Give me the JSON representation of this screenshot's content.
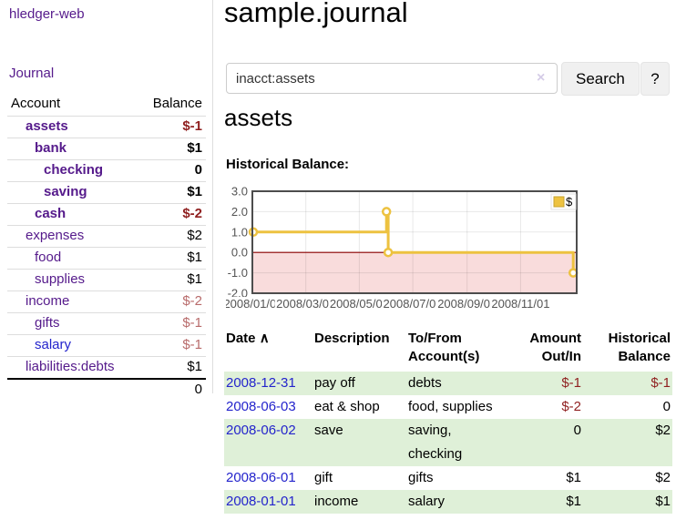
{
  "sidebar": {
    "brand": "hledger-web",
    "journal_link": "Journal",
    "accounts_table": {
      "account_header": "Account",
      "balance_header": "Balance",
      "rows": [
        {
          "name": "assets",
          "balance": "$-1",
          "depth": 1,
          "emphasized": true,
          "visited": true,
          "negative": "strong"
        },
        {
          "name": "bank",
          "balance": "$1",
          "depth": 2,
          "emphasized": true,
          "visited": true,
          "negative": "none"
        },
        {
          "name": "checking",
          "balance": "0",
          "depth": 3,
          "emphasized": true,
          "visited": true,
          "negative": "none"
        },
        {
          "name": "saving",
          "balance": "$1",
          "depth": 3,
          "emphasized": true,
          "visited": true,
          "negative": "none"
        },
        {
          "name": "cash",
          "balance": "$-2",
          "depth": 2,
          "emphasized": true,
          "visited": true,
          "negative": "strong"
        },
        {
          "name": "expenses",
          "balance": "$2",
          "depth": 1,
          "emphasized": false,
          "visited": true,
          "negative": "none"
        },
        {
          "name": "food",
          "balance": "$1",
          "depth": 2,
          "emphasized": false,
          "visited": true,
          "negative": "none"
        },
        {
          "name": "supplies",
          "balance": "$1",
          "depth": 2,
          "emphasized": false,
          "visited": true,
          "negative": "none"
        },
        {
          "name": "income",
          "balance": "$-2",
          "depth": 1,
          "emphasized": false,
          "visited": true,
          "negative": "soft"
        },
        {
          "name": "gifts",
          "balance": "$-1",
          "depth": 2,
          "emphasized": false,
          "visited": true,
          "negative": "soft"
        },
        {
          "name": "salary",
          "balance": "$-1",
          "depth": 2,
          "emphasized": false,
          "visited": false,
          "negative": "soft"
        },
        {
          "name": "liabilities:debts",
          "balance": "$1",
          "depth": 1,
          "emphasized": false,
          "visited": true,
          "negative": "none"
        }
      ],
      "total": "0"
    }
  },
  "header": {
    "title": "sample.journal"
  },
  "search": {
    "value": "inacct:assets",
    "button_label": "Search",
    "help_label": "?"
  },
  "icons": {
    "clear_search": "×",
    "sort_ascending": "∧"
  },
  "account_view": {
    "heading": "assets",
    "chart_label": "Historical Balance:"
  },
  "chart_data": {
    "type": "line",
    "step": true,
    "title": "Historical Balance:",
    "series": [
      {
        "name": "$",
        "color": "#edc240",
        "points": [
          {
            "x": "2008-01-01",
            "y": 1
          },
          {
            "x": "2008-06-01",
            "y": 2
          },
          {
            "x": "2008-06-03",
            "y": 0
          },
          {
            "x": "2008-12-31",
            "y": -1
          }
        ]
      }
    ],
    "x_ticks": [
      "2008/01/01",
      "2008/03/01",
      "2008/05/01",
      "2008/07/01",
      "2008/09/01",
      "2008/11/01"
    ],
    "y_ticks": [
      3.0,
      2.0,
      1.0,
      0.0,
      -1.0,
      -2.0
    ],
    "ylim": [
      -2,
      3
    ],
    "grid": true,
    "legend_position": "top-right",
    "legend_label": "$",
    "negative_region": true
  },
  "register": {
    "headers": {
      "date": "Date",
      "description": "Description",
      "accounts": "To/From Account(s)",
      "amount": "Amount Out/In",
      "balance": "Historical Balance"
    },
    "rows": [
      {
        "date": "2008-12-31",
        "description": "pay off",
        "accounts": "debts",
        "amount": "$-1",
        "balance": "$-1"
      },
      {
        "date": "2008-06-03",
        "description": "eat & shop",
        "accounts": "food, supplies",
        "amount": "$-2",
        "balance": "0"
      },
      {
        "date": "2008-06-02",
        "description": "save",
        "accounts": "saving,\nchecking",
        "amount": "0",
        "balance": "$2"
      },
      {
        "date": "2008-06-01",
        "description": "gift",
        "accounts": "gifts",
        "amount": "$1",
        "balance": "$2"
      },
      {
        "date": "2008-01-01",
        "description": "income",
        "accounts": "salary",
        "amount": "$1",
        "balance": "$1"
      }
    ]
  },
  "colors": {
    "purple": "#551a8b",
    "blue": "#2424cc",
    "negstrong": "#8f1f1f",
    "negsoft": "#b86b6b",
    "green": "#dff0d8",
    "yellow": "#edc240",
    "yellowborder": "#c7a32e",
    "pink": "#f9dcdc",
    "zeroline": "#8b0000",
    "axistext": "#545454",
    "chartborder": "#4d4d4d"
  }
}
